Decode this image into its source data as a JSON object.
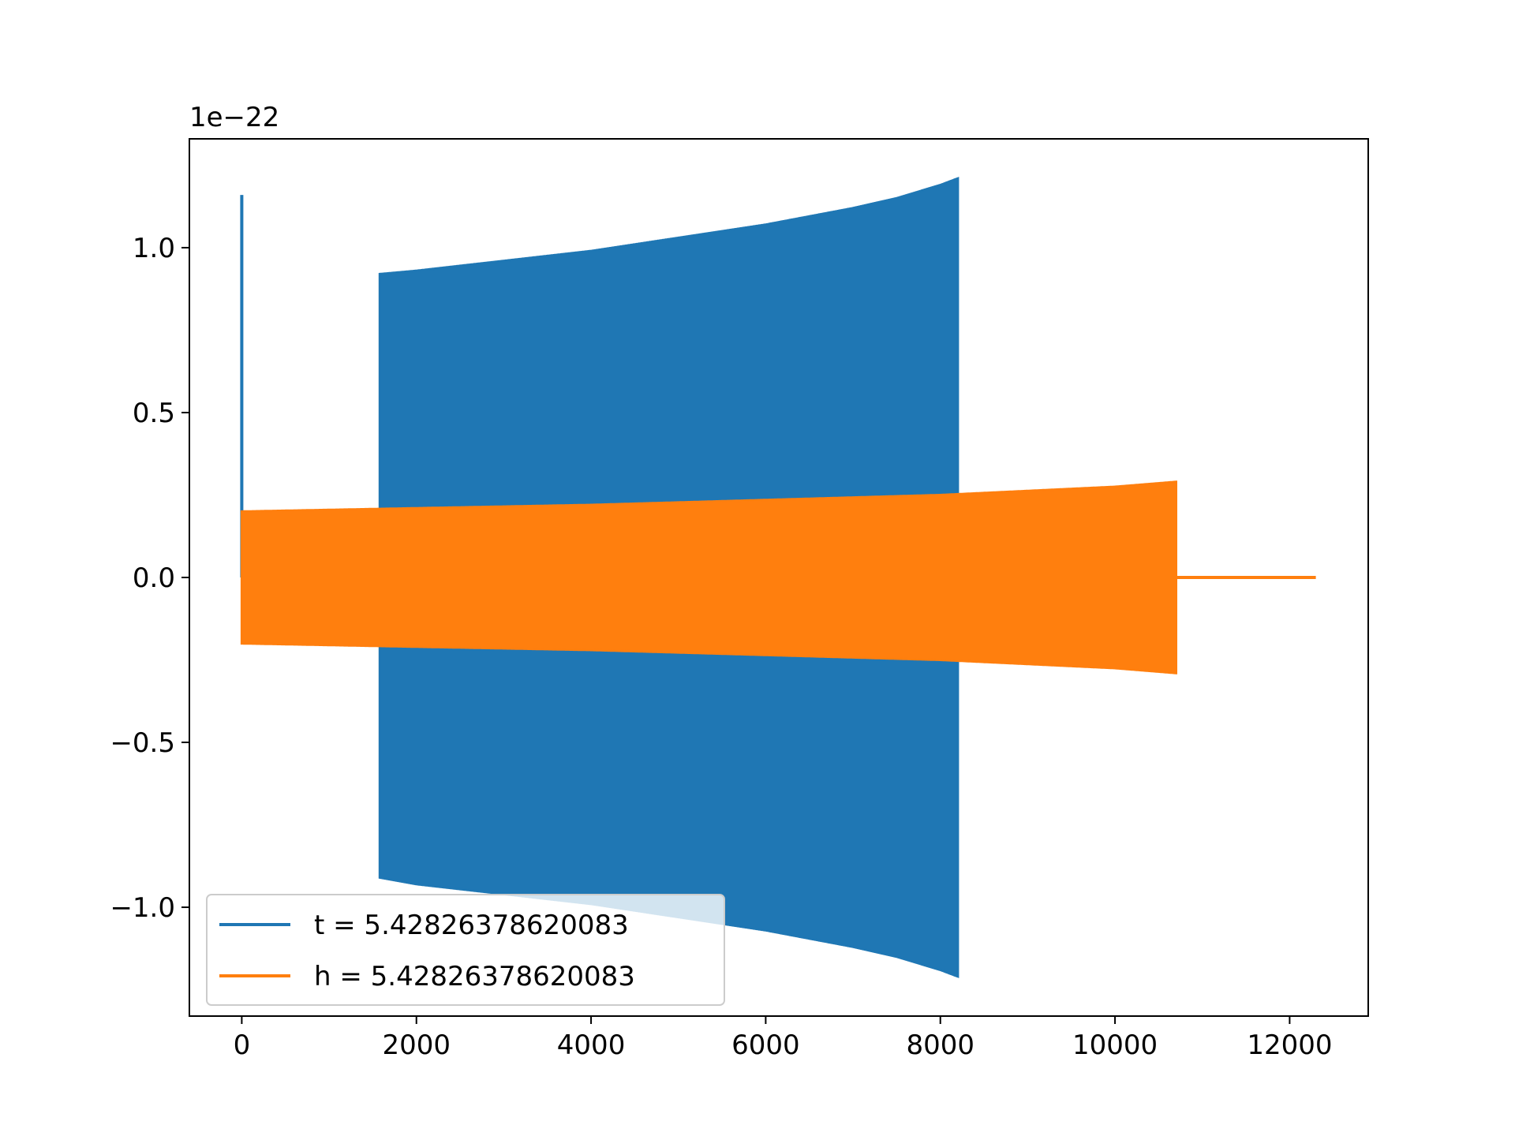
{
  "chart_data": {
    "type": "line",
    "title": "",
    "xlabel": "",
    "ylabel": "",
    "offset_text": "1e−22",
    "xlim": [
      -600,
      12900
    ],
    "ylim": [
      -1.33,
      1.33
    ],
    "x_ticks": [
      0,
      2000,
      4000,
      6000,
      8000,
      10000,
      12000
    ],
    "x_tick_labels": [
      "0",
      "2000",
      "4000",
      "6000",
      "8000",
      "10000",
      "12000"
    ],
    "y_ticks": [
      -1.0,
      -0.5,
      0.0,
      0.5,
      1.0
    ],
    "y_tick_labels": [
      "−1.0",
      "−0.5",
      "0.0",
      "0.5",
      "1.0"
    ],
    "grid": false,
    "legend_position": "lower-left",
    "series": [
      {
        "name": "t = 5.42826378620083",
        "color": "#1f77b4",
        "description_points": {
          "spike": {
            "x": 0,
            "y_max": 1.16,
            "y_min": 0.0
          },
          "envelope": {
            "x": [
              1580,
              2000,
              3000,
              4000,
              5000,
              6000,
              7000,
              7500,
              8000,
              8200
            ],
            "upper": [
              0.92,
              0.93,
              0.96,
              0.99,
              1.03,
              1.07,
              1.12,
              1.15,
              1.19,
              1.21
            ],
            "lower": [
              -0.91,
              -0.93,
              -0.96,
              -0.99,
              -1.03,
              -1.07,
              -1.12,
              -1.15,
              -1.19,
              -1.21
            ]
          }
        }
      },
      {
        "name": "h = 5.42826378620083",
        "color": "#ff7f0e",
        "description_points": {
          "envelope": {
            "x": [
              0,
              2000,
              4000,
              6000,
              8000,
              10000,
              10700
            ],
            "upper": [
              0.2,
              0.21,
              0.22,
              0.235,
              0.25,
              0.275,
              0.29
            ],
            "lower": [
              -0.2,
              -0.21,
              -0.22,
              -0.235,
              -0.25,
              -0.275,
              -0.29
            ]
          },
          "tail": {
            "x_start": 10700,
            "x_end": 12300,
            "y": 0.0
          }
        }
      }
    ]
  }
}
